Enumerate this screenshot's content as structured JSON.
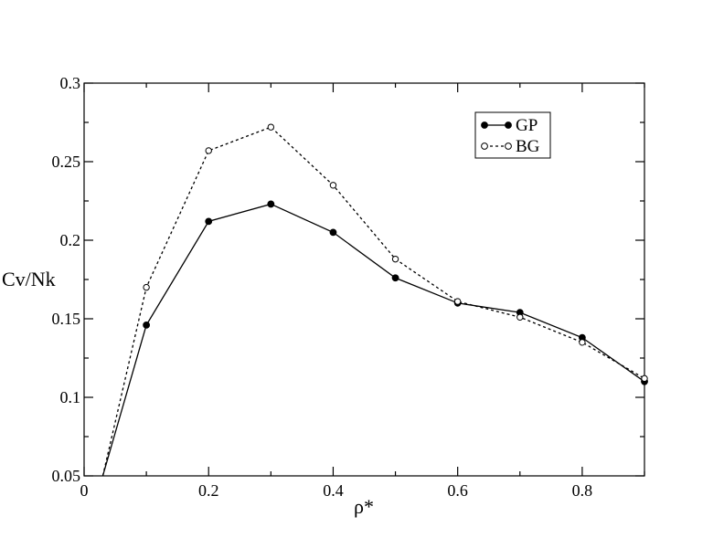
{
  "chart_data": {
    "type": "line",
    "xlabel": "ρ*",
    "ylabel": "Cv/Nk",
    "xlim": [
      0,
      0.9
    ],
    "ylim": [
      0.05,
      0.3
    ],
    "x_ticks": [
      {
        "value": 0,
        "label": "0"
      },
      {
        "value": 0.2,
        "label": "0.2"
      },
      {
        "value": 0.4,
        "label": "0.4"
      },
      {
        "value": 0.6,
        "label": "0.6"
      },
      {
        "value": 0.8,
        "label": "0.8"
      }
    ],
    "y_ticks": [
      {
        "value": 0.05,
        "label": "0.05"
      },
      {
        "value": 0.1,
        "label": "0.1"
      },
      {
        "value": 0.15,
        "label": "0.15"
      },
      {
        "value": 0.2,
        "label": "0.2"
      },
      {
        "value": 0.25,
        "label": "0.25"
      },
      {
        "value": 0.3,
        "label": "0.3"
      }
    ],
    "legend_position": "top-right",
    "series": [
      {
        "name": "GP",
        "line_style": "solid",
        "marker": "filled-circle",
        "color": "#000000",
        "x": [
          0.03,
          0.1,
          0.2,
          0.3,
          0.4,
          0.5,
          0.6,
          0.7,
          0.8,
          0.9
        ],
        "y": [
          0.05,
          0.146,
          0.212,
          0.223,
          0.205,
          0.176,
          0.16,
          0.154,
          0.138,
          0.11
        ]
      },
      {
        "name": "BG",
        "line_style": "dashed",
        "marker": "open-circle",
        "color": "#000000",
        "x": [
          0.03,
          0.1,
          0.2,
          0.3,
          0.4,
          0.5,
          0.6,
          0.7,
          0.8,
          0.9
        ],
        "y": [
          0.05,
          0.17,
          0.257,
          0.272,
          0.235,
          0.188,
          0.161,
          0.151,
          0.135,
          0.112
        ]
      }
    ]
  }
}
